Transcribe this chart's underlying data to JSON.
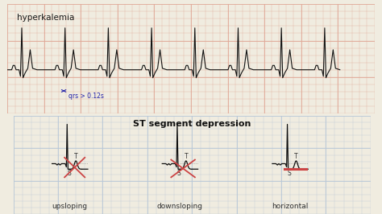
{
  "top_bg": "#f5e8e0",
  "bottom_bg": "#ffffff",
  "outer_bg": "#f0ece0",
  "grid_color_top": "#e0a898",
  "grid_color_bottom": "#b8c8d8",
  "title_top": "hyperkalemia",
  "title_bottom": "ST segment depression",
  "annotation_text": "qrs > 0.12s",
  "arrow_color": "#2222aa",
  "red_line_color": "#cc4444",
  "ecg_color": "#111111",
  "label_upsloping": "upsloping",
  "label_downsloping": "downsloping",
  "label_horizontal": "horizontal",
  "label_T": "T",
  "label_S": "S",
  "dot_color": "#888888"
}
